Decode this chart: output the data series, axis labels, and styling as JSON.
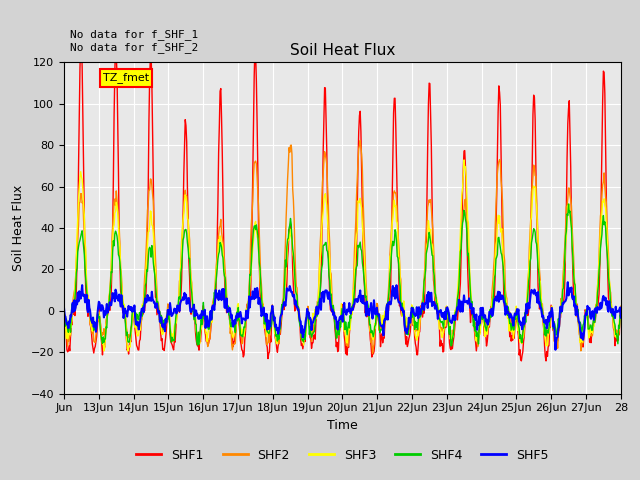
{
  "title": "Soil Heat Flux",
  "ylabel": "Soil Heat Flux",
  "xlabel": "Time",
  "ylim": [
    -40,
    120
  ],
  "yticks": [
    -40,
    -20,
    0,
    20,
    40,
    60,
    80,
    100,
    120
  ],
  "xtick_labels": [
    "Jun",
    "13Jun",
    "14Jun",
    "15Jun",
    "16Jun",
    "17Jun",
    "18Jun",
    "19Jun",
    "20Jun",
    "21Jun",
    "22Jun",
    "23Jun",
    "24Jun",
    "25Jun",
    "26Jun",
    "27Jun",
    "28"
  ],
  "annotation_text": "No data for f_SHF_1\nNo data for f_SHF_2",
  "legend_box_text": "TZ_fmet",
  "legend_box_color": "#ffff00",
  "legend_box_border": "#ff0000",
  "series_colors": {
    "SHF1": "#ff0000",
    "SHF2": "#ff8800",
    "SHF3": "#ffff00",
    "SHF4": "#00cc00",
    "SHF5": "#0000ff"
  },
  "background_color": "#d3d3d3",
  "plot_bg_color": "#e8e8e8",
  "grid_color": "#ffffff",
  "num_days": 16,
  "points_per_day": 48
}
